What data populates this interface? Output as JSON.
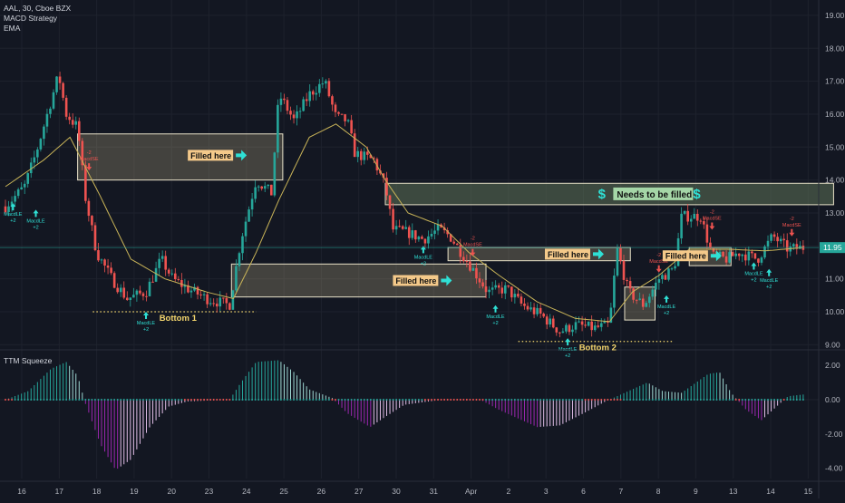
{
  "header": {
    "symbol_line": "AAL, 30, Cboe BZX",
    "indicator_1": "MACD Strategy",
    "indicator_2": "EMA"
  },
  "colors": {
    "background": "#131722",
    "candle_up": "#26a69a",
    "candle_down": "#ef5350",
    "ema": "#c9b458",
    "gap_box_fill": "#c2b48a",
    "needs_fill_box": "#a5d6a7",
    "annotation_arrow": "#2fe0d5",
    "annotation_label_bg": "#f4c98a",
    "squeeze_up_strong": "#26a69a",
    "squeeze_up_weak": "#9ed7d2",
    "squeeze_down_strong": "#9c27b0",
    "squeeze_down_weak": "#e1bee7",
    "bottom_label": "#f5d76e",
    "price_label_bg": "#26a69a"
  },
  "annotations": {
    "filled_here_1": "Filled here",
    "filled_here_2": "Filled here",
    "filled_here_3": "Filled here",
    "filled_here_4": "Filled here",
    "needs_to_be_filled": "Needs to be filled",
    "dollar_left": "$",
    "dollar_right": "$",
    "bottom_1": "Bottom 1",
    "bottom_2": "Bottom 2",
    "arrow_icon": "right-arrow-icon"
  },
  "signals": {
    "macd_le": "MacdLE",
    "macd_se": "MacdSE",
    "plus_2": "+2",
    "minus_2": "-2"
  },
  "current_price_label": "11.95",
  "squeeze_panel": {
    "title": "TTM Squeeze"
  },
  "chart_data": [
    {
      "type": "candlestick",
      "title": "AAL, 30, Cboe BZX",
      "y_ticks": [
        "19.00",
        "18.00",
        "17.00",
        "16.00",
        "15.00",
        "14.00",
        "13.00",
        "12.00",
        "11.00",
        "10.00",
        "9.00"
      ],
      "ylim": [
        8.9,
        19.3
      ],
      "x_ticks": [
        "16",
        "17",
        "18",
        "19",
        "20",
        "23",
        "24",
        "25",
        "26",
        "27",
        "30",
        "31",
        "Apr",
        "2",
        "3",
        "6",
        "7",
        "8",
        "9",
        "13",
        "14",
        "15"
      ],
      "last_price": 11.95,
      "close_path": [
        {
          "x": 0,
          "v": 13.2
        },
        {
          "x": 0.5,
          "v": 13.8
        },
        {
          "x": 0.8,
          "v": 14.8
        },
        {
          "x": 1.0,
          "v": 15.6
        },
        {
          "x": 1.4,
          "v": 17.2
        },
        {
          "x": 1.6,
          "v": 16.0
        },
        {
          "x": 1.9,
          "v": 15.6
        },
        {
          "x": 2.1,
          "v": 13.5
        },
        {
          "x": 2.4,
          "v": 11.8
        },
        {
          "x": 2.8,
          "v": 11.0
        },
        {
          "x": 3.2,
          "v": 10.4
        },
        {
          "x": 3.7,
          "v": 10.6
        },
        {
          "x": 4.1,
          "v": 11.6
        },
        {
          "x": 4.4,
          "v": 11.0
        },
        {
          "x": 4.8,
          "v": 10.7
        },
        {
          "x": 5.3,
          "v": 10.4
        },
        {
          "x": 5.9,
          "v": 10.2
        },
        {
          "x": 6.2,
          "v": 12.2
        },
        {
          "x": 6.6,
          "v": 14.0
        },
        {
          "x": 7.0,
          "v": 13.6
        },
        {
          "x": 7.2,
          "v": 16.6
        },
        {
          "x": 7.6,
          "v": 15.8
        },
        {
          "x": 8.0,
          "v": 16.6
        },
        {
          "x": 8.4,
          "v": 17.0
        },
        {
          "x": 8.7,
          "v": 15.9
        },
        {
          "x": 9.0,
          "v": 15.8
        },
        {
          "x": 9.2,
          "v": 14.8
        },
        {
          "x": 9.7,
          "v": 14.6
        },
        {
          "x": 10.0,
          "v": 13.8
        },
        {
          "x": 10.2,
          "v": 12.5
        },
        {
          "x": 10.6,
          "v": 12.4
        },
        {
          "x": 11.0,
          "v": 12.2
        },
        {
          "x": 11.4,
          "v": 12.5
        },
        {
          "x": 11.7,
          "v": 12.3
        },
        {
          "x": 12.0,
          "v": 11.8
        },
        {
          "x": 12.3,
          "v": 11.3
        },
        {
          "x": 12.7,
          "v": 10.6
        },
        {
          "x": 13.2,
          "v": 10.7
        },
        {
          "x": 13.6,
          "v": 10.2
        },
        {
          "x": 14.1,
          "v": 9.9
        },
        {
          "x": 14.6,
          "v": 9.4
        },
        {
          "x": 15.0,
          "v": 9.6
        },
        {
          "x": 15.5,
          "v": 9.5
        },
        {
          "x": 15.9,
          "v": 9.6
        },
        {
          "x": 16.1,
          "v": 11.9
        },
        {
          "x": 16.4,
          "v": 10.6
        },
        {
          "x": 16.8,
          "v": 10.2
        },
        {
          "x": 17.2,
          "v": 11.0
        },
        {
          "x": 17.6,
          "v": 11.3
        },
        {
          "x": 17.8,
          "v": 12.9
        },
        {
          "x": 18.3,
          "v": 12.9
        },
        {
          "x": 18.6,
          "v": 11.7
        },
        {
          "x": 19.0,
          "v": 11.6
        },
        {
          "x": 19.3,
          "v": 11.8
        },
        {
          "x": 19.8,
          "v": 11.6
        },
        {
          "x": 20.2,
          "v": 12.3
        },
        {
          "x": 20.6,
          "v": 11.9
        },
        {
          "x": 21.0,
          "v": 11.95
        }
      ],
      "ema_path": [
        {
          "x": 0,
          "v": 13.8
        },
        {
          "x": 1.0,
          "v": 14.6
        },
        {
          "x": 1.7,
          "v": 15.3
        },
        {
          "x": 2.5,
          "v": 13.5
        },
        {
          "x": 3.3,
          "v": 11.6
        },
        {
          "x": 4.2,
          "v": 11.0
        },
        {
          "x": 5.3,
          "v": 10.6
        },
        {
          "x": 6.0,
          "v": 10.4
        },
        {
          "x": 6.6,
          "v": 11.8
        },
        {
          "x": 7.2,
          "v": 13.4
        },
        {
          "x": 8.0,
          "v": 15.3
        },
        {
          "x": 8.7,
          "v": 15.7
        },
        {
          "x": 9.5,
          "v": 15.0
        },
        {
          "x": 10.0,
          "v": 14.0
        },
        {
          "x": 10.6,
          "v": 13.0
        },
        {
          "x": 11.5,
          "v": 12.6
        },
        {
          "x": 12.2,
          "v": 11.8
        },
        {
          "x": 13.0,
          "v": 11.1
        },
        {
          "x": 14.0,
          "v": 10.3
        },
        {
          "x": 15.0,
          "v": 9.8
        },
        {
          "x": 15.9,
          "v": 9.7
        },
        {
          "x": 16.5,
          "v": 10.6
        },
        {
          "x": 17.2,
          "v": 11.1
        },
        {
          "x": 18.0,
          "v": 11.9
        },
        {
          "x": 19.0,
          "v": 11.9
        },
        {
          "x": 20.0,
          "v": 11.85
        },
        {
          "x": 21.0,
          "v": 11.95
        }
      ],
      "gaps": [
        {
          "label": "Filled here",
          "x0": 1.9,
          "x1": 7.3,
          "lo": 14.0,
          "hi": 15.4
        },
        {
          "label": "Filled here",
          "x0": 5.95,
          "x1": 12.65,
          "lo": 10.45,
          "hi": 11.45
        },
        {
          "label": "Needs to be filled",
          "x0": 10.0,
          "x1": 21.8,
          "lo": 13.25,
          "hi": 13.9
        },
        {
          "label": "Filled here",
          "x0": 11.65,
          "x1": 16.45,
          "lo": 11.55,
          "hi": 11.95
        },
        {
          "label": "",
          "x0": 16.3,
          "x1": 17.1,
          "lo": 9.75,
          "hi": 10.75
        },
        {
          "label": "Filled here",
          "x0": 18.0,
          "x1": 19.1,
          "lo": 11.4,
          "hi": 11.95
        }
      ],
      "bottoms": [
        {
          "label": "Bottom 1",
          "x0": 2.3,
          "x1": 6.6,
          "v": 10.0
        },
        {
          "label": "Bottom 2",
          "x0": 13.5,
          "x1": 17.6,
          "v": 9.1
        }
      ]
    },
    {
      "type": "bar",
      "title": "TTM Squeeze",
      "y_ticks": [
        "2.00",
        "0.00",
        "-2.00",
        "-4.00"
      ],
      "ylim": [
        -4.6,
        2.8
      ],
      "envelope": [
        {
          "x": 0,
          "v": 0.0
        },
        {
          "x": 0.6,
          "v": 0.5
        },
        {
          "x": 1.2,
          "v": 1.8
        },
        {
          "x": 1.6,
          "v": 2.2
        },
        {
          "x": 1.9,
          "v": 1.4
        },
        {
          "x": 2.1,
          "v": -0.2
        },
        {
          "x": 2.5,
          "v": -2.6
        },
        {
          "x": 2.9,
          "v": -4.1
        },
        {
          "x": 3.3,
          "v": -3.5
        },
        {
          "x": 3.8,
          "v": -1.6
        },
        {
          "x": 4.3,
          "v": -0.4
        },
        {
          "x": 4.8,
          "v": -0.1
        },
        {
          "x": 5.9,
          "v": 0.0
        },
        {
          "x": 6.2,
          "v": 1.0
        },
        {
          "x": 6.6,
          "v": 2.2
        },
        {
          "x": 7.2,
          "v": 2.3
        },
        {
          "x": 7.6,
          "v": 1.6
        },
        {
          "x": 8.0,
          "v": 0.6
        },
        {
          "x": 8.6,
          "v": 0.1
        },
        {
          "x": 9.0,
          "v": -0.8
        },
        {
          "x": 9.6,
          "v": -1.6
        },
        {
          "x": 10.0,
          "v": -1.0
        },
        {
          "x": 10.5,
          "v": -0.3
        },
        {
          "x": 11.5,
          "v": 0.0
        },
        {
          "x": 12.5,
          "v": 0.0
        },
        {
          "x": 13.0,
          "v": -0.6
        },
        {
          "x": 14.0,
          "v": -1.6
        },
        {
          "x": 14.6,
          "v": -1.5
        },
        {
          "x": 15.3,
          "v": -0.7
        },
        {
          "x": 15.8,
          "v": -0.1
        },
        {
          "x": 16.4,
          "v": 0.5
        },
        {
          "x": 16.9,
          "v": 1.0
        },
        {
          "x": 17.3,
          "v": 0.5
        },
        {
          "x": 17.8,
          "v": 0.4
        },
        {
          "x": 18.5,
          "v": 1.5
        },
        {
          "x": 18.8,
          "v": 1.6
        },
        {
          "x": 19.1,
          "v": 0.4
        },
        {
          "x": 19.5,
          "v": -0.6
        },
        {
          "x": 19.9,
          "v": -1.2
        },
        {
          "x": 20.2,
          "v": -0.6
        },
        {
          "x": 20.6,
          "v": 0.2
        },
        {
          "x": 21.0,
          "v": 0.3
        }
      ]
    }
  ]
}
